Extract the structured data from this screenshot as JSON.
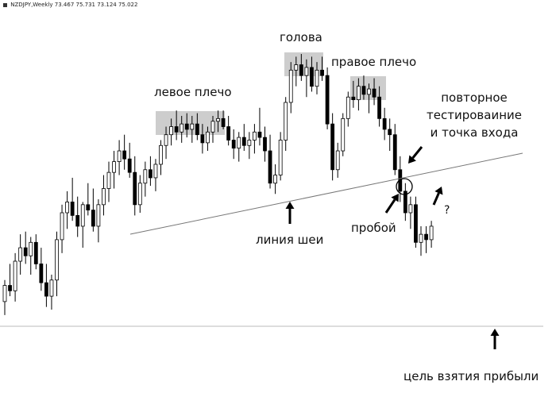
{
  "header": {
    "symbol": "NZDJPY,Weekly",
    "ohlc": "73.467 75.731 73.124 75.022"
  },
  "annotations": {
    "left_shoulder": "левое плечо",
    "head": "голова",
    "right_shoulder": "правое плечо",
    "retest_line1": "повторное",
    "retest_line2": "тестироваиние",
    "retest_line3": "и точка входа",
    "neckline": "линия шеи",
    "breakout": "пробой",
    "question": "?",
    "target": "цель взятия прибыли"
  },
  "colors": {
    "bull_fill": "#ffffff",
    "bear_fill": "#000000",
    "wick": "#000000",
    "neckline": "#777777",
    "target_line": "#bbbbbb",
    "highlight": "#c8c8c8"
  },
  "chart_data": {
    "type": "candlestick",
    "pattern": "head and shoulders",
    "y_range": [
      0,
      100
    ],
    "candles": [
      {
        "o": 8,
        "h": 16,
        "l": 3,
        "c": 14
      },
      {
        "o": 14,
        "h": 22,
        "l": 10,
        "c": 12
      },
      {
        "o": 12,
        "h": 26,
        "l": 8,
        "c": 23
      },
      {
        "o": 23,
        "h": 33,
        "l": 18,
        "c": 28
      },
      {
        "o": 28,
        "h": 34,
        "l": 22,
        "c": 25
      },
      {
        "o": 25,
        "h": 32,
        "l": 18,
        "c": 30
      },
      {
        "o": 30,
        "h": 33,
        "l": 20,
        "c": 22
      },
      {
        "o": 22,
        "h": 28,
        "l": 12,
        "c": 15
      },
      {
        "o": 15,
        "h": 22,
        "l": 6,
        "c": 10
      },
      {
        "o": 10,
        "h": 18,
        "l": 5,
        "c": 16
      },
      {
        "o": 16,
        "h": 34,
        "l": 10,
        "c": 31
      },
      {
        "o": 31,
        "h": 44,
        "l": 26,
        "c": 41
      },
      {
        "o": 41,
        "h": 49,
        "l": 35,
        "c": 45
      },
      {
        "o": 45,
        "h": 54,
        "l": 38,
        "c": 40
      },
      {
        "o": 40,
        "h": 47,
        "l": 32,
        "c": 36
      },
      {
        "o": 36,
        "h": 45,
        "l": 28,
        "c": 44
      },
      {
        "o": 44,
        "h": 52,
        "l": 40,
        "c": 42
      },
      {
        "o": 42,
        "h": 50,
        "l": 34,
        "c": 36
      },
      {
        "o": 36,
        "h": 46,
        "l": 30,
        "c": 44
      },
      {
        "o": 44,
        "h": 55,
        "l": 40,
        "c": 50
      },
      {
        "o": 50,
        "h": 60,
        "l": 45,
        "c": 56
      },
      {
        "o": 56,
        "h": 64,
        "l": 50,
        "c": 60
      },
      {
        "o": 60,
        "h": 68,
        "l": 55,
        "c": 64
      },
      {
        "o": 64,
        "h": 70,
        "l": 57,
        "c": 61
      },
      {
        "o": 61,
        "h": 67,
        "l": 54,
        "c": 56
      },
      {
        "o": 56,
        "h": 62,
        "l": 40,
        "c": 44
      },
      {
        "o": 44,
        "h": 55,
        "l": 41,
        "c": 52
      },
      {
        "o": 52,
        "h": 60,
        "l": 47,
        "c": 57
      },
      {
        "o": 57,
        "h": 62,
        "l": 51,
        "c": 54
      },
      {
        "o": 54,
        "h": 61,
        "l": 49,
        "c": 59
      },
      {
        "o": 59,
        "h": 68,
        "l": 55,
        "c": 66
      },
      {
        "o": 66,
        "h": 73,
        "l": 61,
        "c": 70
      },
      {
        "o": 70,
        "h": 76,
        "l": 66,
        "c": 73
      },
      {
        "o": 73,
        "h": 79,
        "l": 68,
        "c": 71
      },
      {
        "o": 71,
        "h": 77,
        "l": 67,
        "c": 74
      },
      {
        "o": 74,
        "h": 78,
        "l": 69,
        "c": 72
      },
      {
        "o": 72,
        "h": 77,
        "l": 67,
        "c": 74
      },
      {
        "o": 74,
        "h": 78,
        "l": 68,
        "c": 70
      },
      {
        "o": 70,
        "h": 74,
        "l": 63,
        "c": 67
      },
      {
        "o": 67,
        "h": 73,
        "l": 64,
        "c": 71
      },
      {
        "o": 71,
        "h": 77,
        "l": 67,
        "c": 75
      },
      {
        "o": 75,
        "h": 79,
        "l": 71,
        "c": 76
      },
      {
        "o": 76,
        "h": 79,
        "l": 72,
        "c": 73
      },
      {
        "o": 73,
        "h": 77,
        "l": 66,
        "c": 68
      },
      {
        "o": 68,
        "h": 72,
        "l": 61,
        "c": 65
      },
      {
        "o": 65,
        "h": 71,
        "l": 60,
        "c": 69
      },
      {
        "o": 69,
        "h": 74,
        "l": 64,
        "c": 66
      },
      {
        "o": 66,
        "h": 71,
        "l": 61,
        "c": 68
      },
      {
        "o": 68,
        "h": 74,
        "l": 63,
        "c": 71
      },
      {
        "o": 71,
        "h": 80,
        "l": 66,
        "c": 69
      },
      {
        "o": 69,
        "h": 73,
        "l": 60,
        "c": 64
      },
      {
        "o": 64,
        "h": 70,
        "l": 50,
        "c": 52
      },
      {
        "o": 52,
        "h": 59,
        "l": 48,
        "c": 55
      },
      {
        "o": 55,
        "h": 71,
        "l": 53,
        "c": 68
      },
      {
        "o": 68,
        "h": 84,
        "l": 64,
        "c": 82
      },
      {
        "o": 82,
        "h": 97,
        "l": 78,
        "c": 94
      },
      {
        "o": 94,
        "h": 99,
        "l": 88,
        "c": 96
      },
      {
        "o": 96,
        "h": 100,
        "l": 90,
        "c": 92
      },
      {
        "o": 92,
        "h": 98,
        "l": 84,
        "c": 95
      },
      {
        "o": 95,
        "h": 99,
        "l": 86,
        "c": 88
      },
      {
        "o": 88,
        "h": 97,
        "l": 85,
        "c": 94
      },
      {
        "o": 94,
        "h": 99,
        "l": 90,
        "c": 92
      },
      {
        "o": 92,
        "h": 95,
        "l": 72,
        "c": 74
      },
      {
        "o": 74,
        "h": 78,
        "l": 53,
        "c": 57
      },
      {
        "o": 57,
        "h": 67,
        "l": 54,
        "c": 64
      },
      {
        "o": 64,
        "h": 78,
        "l": 62,
        "c": 76
      },
      {
        "o": 76,
        "h": 86,
        "l": 73,
        "c": 84
      },
      {
        "o": 84,
        "h": 90,
        "l": 80,
        "c": 83
      },
      {
        "o": 83,
        "h": 91,
        "l": 79,
        "c": 88
      },
      {
        "o": 88,
        "h": 92,
        "l": 83,
        "c": 85
      },
      {
        "o": 85,
        "h": 89,
        "l": 78,
        "c": 87
      },
      {
        "o": 87,
        "h": 91,
        "l": 81,
        "c": 84
      },
      {
        "o": 84,
        "h": 88,
        "l": 73,
        "c": 76
      },
      {
        "o": 76,
        "h": 80,
        "l": 68,
        "c": 72
      },
      {
        "o": 72,
        "h": 76,
        "l": 64,
        "c": 70
      },
      {
        "o": 70,
        "h": 74,
        "l": 55,
        "c": 57
      },
      {
        "o": 57,
        "h": 62,
        "l": 45,
        "c": 49
      },
      {
        "o": 49,
        "h": 52,
        "l": 38,
        "c": 41
      },
      {
        "o": 41,
        "h": 47,
        "l": 35,
        "c": 44
      },
      {
        "o": 44,
        "h": 47,
        "l": 28,
        "c": 30
      },
      {
        "o": 30,
        "h": 36,
        "l": 25,
        "c": 33
      },
      {
        "o": 33,
        "h": 36,
        "l": 26,
        "c": 31
      },
      {
        "o": 31,
        "h": 38,
        "l": 28,
        "c": 36
      }
    ]
  }
}
